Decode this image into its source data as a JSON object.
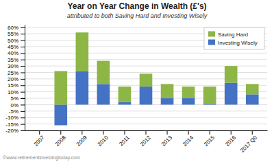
{
  "chart_data": {
    "type": "bar",
    "stacked": true,
    "title": "Year on Year Change in Wealth (£'s)",
    "subtitle": "attributed to both Saving Hard and Investing Wisely",
    "annotations": [
      "©www.retirementinvestingtoday.com"
    ],
    "categories": [
      "2007",
      "2008",
      "2009",
      "2010",
      "2011",
      "2012",
      "2013",
      "2014",
      "2015",
      "2016",
      "2017 Q0"
    ],
    "series": [
      {
        "name": "Saving Hard",
        "color": "#8db646",
        "values": [
          0.0,
          26.0,
          30.0,
          18.0,
          12.0,
          10.0,
          11.0,
          9.0,
          13.0,
          13.0,
          8.0
        ]
      },
      {
        "name": "Investing Wisely",
        "color": "#4472c4",
        "values": [
          0.0,
          -16.0,
          26.0,
          16.0,
          2.0,
          14.0,
          5.0,
          5.0,
          1.0,
          17.0,
          8.0
        ]
      }
    ],
    "ylim": [
      -20,
      62
    ],
    "yticks": [
      {
        "value": -20,
        "label": "-20%"
      },
      {
        "value": -15,
        "label": "-15%"
      },
      {
        "value": -10,
        "label": "-10%"
      },
      {
        "value": -5,
        "label": "-5%"
      },
      {
        "value": 0,
        "label": "0%"
      },
      {
        "value": 5,
        "label": "5%"
      },
      {
        "value": 10,
        "label": "10%"
      },
      {
        "value": 15,
        "label": "15%"
      },
      {
        "value": 20,
        "label": "20%"
      },
      {
        "value": 25,
        "label": "25%"
      },
      {
        "value": 30,
        "label": "30%"
      },
      {
        "value": 35,
        "label": "35%"
      },
      {
        "value": 40,
        "label": "40%"
      },
      {
        "value": 45,
        "label": "45%"
      },
      {
        "value": 50,
        "label": "50%"
      },
      {
        "value": 55,
        "label": "55%"
      },
      {
        "value": 60,
        "label": "60%"
      }
    ],
    "grid": true,
    "legend": "upper right"
  }
}
